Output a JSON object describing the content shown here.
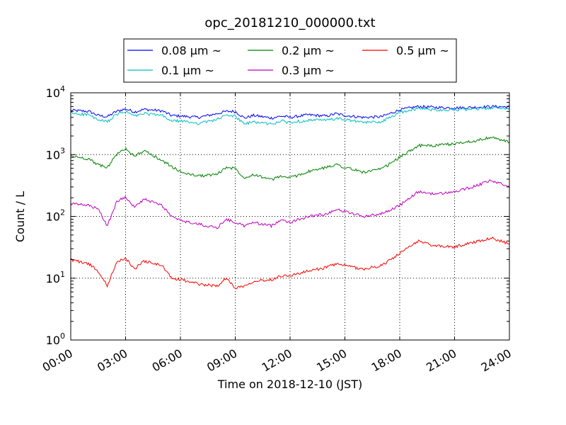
{
  "chart_data": {
    "type": "line",
    "title": "opc_20181210_000000.txt",
    "xlabel": "Time on 2018-12-10 (JST)",
    "ylabel": "Count / L",
    "yscale": "log",
    "ylim": [
      1,
      10000
    ],
    "xlim": [
      "00:00",
      "24:00"
    ],
    "grid": true,
    "legend_position": "top-center",
    "x_ticks": [
      "00:00",
      "03:00",
      "06:00",
      "09:00",
      "12:00",
      "15:00",
      "18:00",
      "21:00",
      "24:00"
    ],
    "y_ticks": [
      {
        "base": "10",
        "exp": "0",
        "value": 1
      },
      {
        "base": "10",
        "exp": "1",
        "value": 10
      },
      {
        "base": "10",
        "exp": "2",
        "value": 100
      },
      {
        "base": "10",
        "exp": "3",
        "value": 1000
      },
      {
        "base": "10",
        "exp": "4",
        "value": 10000
      }
    ],
    "x": [
      "00:00",
      "01:00",
      "01:30",
      "02:00",
      "02:30",
      "03:00",
      "03:30",
      "04:00",
      "05:00",
      "05:30",
      "06:00",
      "07:00",
      "08:00",
      "08:30",
      "09:00",
      "09:30",
      "10:00",
      "11:00",
      "11:30",
      "12:00",
      "13:00",
      "14:00",
      "14:30",
      "15:00",
      "16:00",
      "17:00",
      "18:00",
      "19:00",
      "20:00",
      "21:00",
      "22:00",
      "23:00",
      "24:00"
    ],
    "series": [
      {
        "name": "0.08 μm ~",
        "color": "#0000ff",
        "values": [
          5200,
          5000,
          4300,
          4100,
          5000,
          5500,
          4900,
          5400,
          5100,
          4300,
          4200,
          4000,
          4600,
          5000,
          5000,
          3900,
          4300,
          3900,
          4200,
          4000,
          4400,
          4200,
          4600,
          4300,
          4000,
          4100,
          5300,
          6000,
          5800,
          5700,
          5800,
          6000,
          5900
        ]
      },
      {
        "name": "0.1 μm ~",
        "color": "#00bfbf",
        "values": [
          4700,
          4400,
          3600,
          3400,
          4400,
          5000,
          4200,
          4600,
          4300,
          3500,
          3500,
          3200,
          3700,
          4300,
          4200,
          3100,
          3400,
          3100,
          3500,
          3300,
          3600,
          3600,
          3800,
          3700,
          3300,
          3400,
          4800,
          5600,
          5300,
          5300,
          5400,
          5700,
          5600
        ]
      },
      {
        "name": "0.2 μm ~",
        "color": "#008000",
        "values": [
          950,
          850,
          680,
          620,
          1000,
          1250,
          950,
          1150,
          800,
          650,
          520,
          450,
          480,
          620,
          600,
          420,
          480,
          390,
          450,
          420,
          530,
          620,
          700,
          620,
          520,
          580,
          900,
          1400,
          1400,
          1500,
          1650,
          1900,
          1600
        ]
      },
      {
        "name": "0.3 μm ~",
        "color": "#bf00bf",
        "values": [
          160,
          150,
          130,
          70,
          170,
          210,
          140,
          190,
          150,
          100,
          85,
          75,
          65,
          90,
          80,
          70,
          80,
          70,
          90,
          80,
          100,
          110,
          130,
          120,
          100,
          110,
          150,
          250,
          230,
          250,
          300,
          380,
          300
        ]
      },
      {
        "name": "0.5 μm ~",
        "color": "#ff0000",
        "values": [
          20,
          17,
          13,
          7.5,
          18,
          21,
          14,
          19,
          16,
          10,
          9.5,
          8,
          7.5,
          10,
          7,
          7.5,
          9,
          9.5,
          11,
          11,
          13,
          15,
          17,
          16,
          14,
          16,
          25,
          40,
          33,
          32,
          38,
          45,
          36
        ]
      }
    ]
  }
}
